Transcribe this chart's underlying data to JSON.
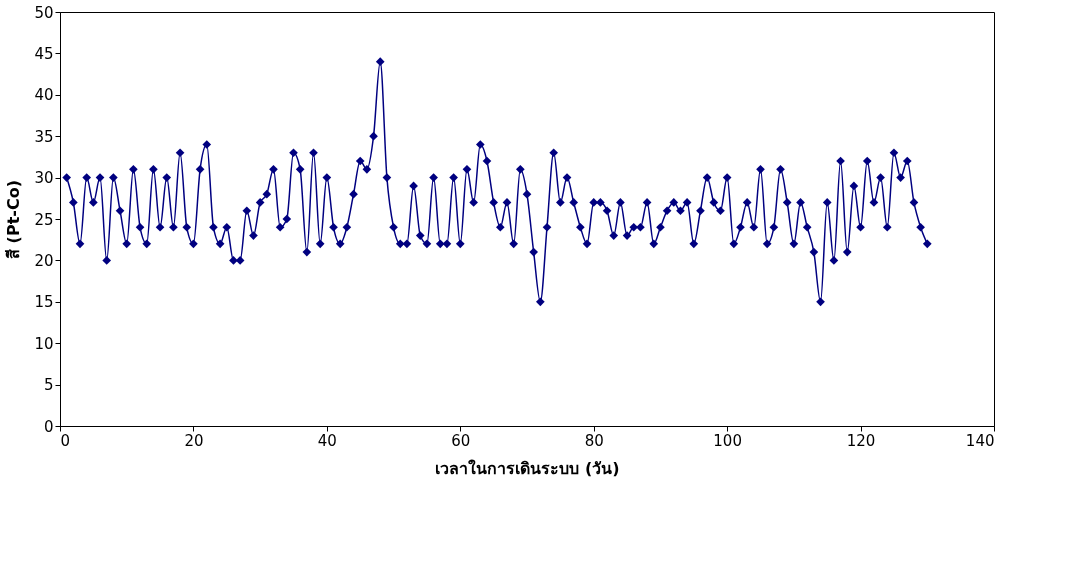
{
  "chart_data": {
    "type": "line",
    "xlabel": "เวลาในการเดินระบบ (วัน)",
    "ylabel": "สี (Pt-Co)",
    "x": [
      1,
      2,
      3,
      4,
      5,
      6,
      7,
      8,
      9,
      10,
      11,
      12,
      13,
      14,
      15,
      16,
      17,
      18,
      19,
      20,
      21,
      22,
      23,
      24,
      25,
      26,
      27,
      28,
      29,
      30,
      31,
      32,
      33,
      34,
      35,
      36,
      37,
      38,
      39,
      40,
      41,
      42,
      43,
      44,
      45,
      46,
      47,
      48,
      49,
      50,
      51,
      52,
      53,
      54,
      55,
      56,
      57,
      58,
      59,
      60,
      61,
      62,
      63,
      64,
      65,
      66,
      67,
      68,
      69,
      70,
      71,
      72,
      73,
      74,
      75,
      76,
      77,
      78,
      79,
      80,
      81,
      82,
      83,
      84,
      85,
      86,
      87,
      88,
      89,
      90,
      91,
      92,
      93,
      94,
      95,
      96,
      97,
      98,
      99,
      100,
      101,
      102,
      103,
      104,
      105,
      106,
      107,
      108,
      109,
      110,
      111,
      112,
      113,
      114,
      115,
      116,
      117,
      118,
      119,
      120,
      121,
      122,
      123,
      124,
      125,
      126,
      127,
      128,
      129,
      130
    ],
    "series": [
      {
        "color": "#000080",
        "values": [
          30,
          27,
          22,
          30,
          27,
          30,
          20,
          30,
          26,
          22,
          31,
          24,
          22,
          31,
          24,
          30,
          24,
          33,
          24,
          22,
          31,
          34,
          24,
          22,
          24,
          20,
          20,
          26,
          23,
          27,
          28,
          31,
          24,
          25,
          33,
          31,
          21,
          33,
          22,
          30,
          24,
          22,
          24,
          28,
          32,
          31,
          35,
          44,
          30,
          24,
          22,
          22,
          29,
          23,
          22,
          30,
          22,
          22,
          30,
          22,
          31,
          27,
          34,
          32,
          27,
          24,
          27,
          22,
          31,
          28,
          21,
          15,
          24,
          33,
          27,
          30,
          27,
          24,
          22,
          27,
          27,
          26,
          23,
          27,
          23,
          24,
          24,
          27,
          22,
          24,
          26,
          27,
          26,
          27,
          22,
          26,
          30,
          27,
          26,
          30,
          22,
          24,
          27,
          24,
          31,
          22,
          24,
          31,
          27,
          22,
          27,
          24,
          21,
          15,
          27,
          20,
          32,
          21,
          29,
          24,
          32,
          27,
          30,
          24,
          33,
          30,
          32,
          27,
          24,
          22
        ]
      }
    ],
    "xlim": [
      0,
      140
    ],
    "xticks": [
      0,
      20,
      40,
      60,
      80,
      100,
      120,
      140
    ],
    "ylim": [
      0,
      50
    ],
    "yticks": [
      0,
      5,
      10,
      15,
      20,
      25,
      30,
      35,
      40,
      45,
      50
    ],
    "grid": false,
    "legend": false,
    "marker": "diamond",
    "line_style": "solid"
  }
}
